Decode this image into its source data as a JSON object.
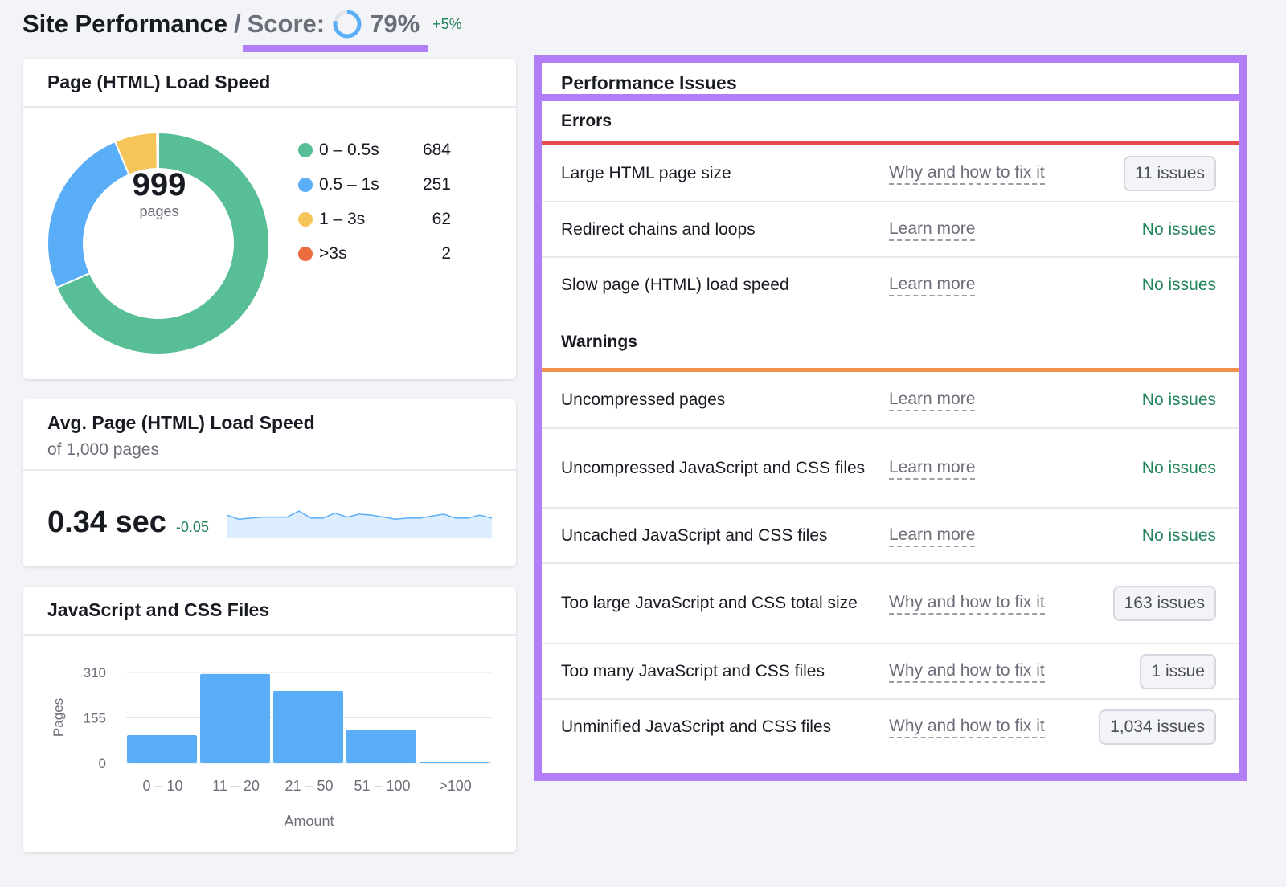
{
  "header": {
    "title": "Site Performance",
    "separator": "/",
    "score_label": "Score:",
    "score_value": "79%",
    "score_fraction": 0.79,
    "score_delta": "+5%"
  },
  "colors": {
    "accent": "#b17ef7",
    "green": "#57be95",
    "blue": "#5aaef7",
    "yellow": "#f5c55a",
    "red": "#ec6b3f",
    "error_line": "#e64c4c",
    "warning_line": "#f0904b",
    "positive": "#22845a"
  },
  "load_speed": {
    "title": "Page (HTML) Load Speed",
    "total": "999",
    "total_label": "pages",
    "chart_data": {
      "type": "pie",
      "donut": true,
      "categories": [
        "0 – 0.5s",
        "0.5 – 1s",
        "1 – 3s",
        ">3s"
      ],
      "values": [
        684,
        251,
        62,
        2
      ],
      "colors": [
        "#57be95",
        "#5aaef7",
        "#f5c55a",
        "#ec6b3f"
      ]
    }
  },
  "avg_speed": {
    "title": "Avg. Page (HTML) Load Speed",
    "subtitle": "of 1,000 pages",
    "value": "0.34 sec",
    "delta": "-0.05",
    "chart_data": {
      "type": "area",
      "values": [
        0.36,
        0.34,
        0.345,
        0.35,
        0.35,
        0.35,
        0.38,
        0.345,
        0.345,
        0.37,
        0.35,
        0.365,
        0.36,
        0.35,
        0.34,
        0.345,
        0.345,
        0.355,
        0.365,
        0.345,
        0.345,
        0.36,
        0.345
      ]
    }
  },
  "js_css": {
    "title": "JavaScript and CSS Files",
    "chart_data": {
      "type": "bar",
      "categories": [
        "0 – 10",
        "11 – 20",
        "21 – 50",
        "51 – 100",
        ">100"
      ],
      "values": [
        96,
        305,
        247,
        115,
        5
      ],
      "xlabel": "Amount",
      "ylabel": "Pages",
      "yticks": [
        "0",
        "155",
        "310"
      ],
      "ylim": [
        0,
        310
      ],
      "grid": true
    }
  },
  "issues": {
    "title": "Performance Issues",
    "errors_label": "Errors",
    "warnings_label": "Warnings",
    "errors": [
      {
        "name": "Large HTML page size",
        "link": "Why and how to fix it",
        "status": "11 issues",
        "badge": true
      },
      {
        "name": "Redirect chains and loops",
        "link": "Learn more",
        "status": "No issues",
        "badge": false
      },
      {
        "name": "Slow page (HTML) load speed",
        "link": "Learn more",
        "status": "No issues",
        "badge": false
      }
    ],
    "warnings": [
      {
        "name": "Uncompressed pages",
        "link": "Learn more",
        "status": "No issues",
        "badge": false
      },
      {
        "name": "Uncompressed JavaScript and CSS files",
        "link": "Learn more",
        "status": "No issues",
        "badge": false
      },
      {
        "name": "Uncached JavaScript and CSS files",
        "link": "Learn more",
        "status": "No issues",
        "badge": false
      },
      {
        "name": "Too large JavaScript and CSS total size",
        "link": "Why and how to fix it",
        "status": "163 issues",
        "badge": true
      },
      {
        "name": "Too many JavaScript and CSS files",
        "link": "Why and how to fix it",
        "status": "1 issue",
        "badge": true
      },
      {
        "name": "Unminified JavaScript and CSS files",
        "link": "Why and how to fix it",
        "status": "1,034 issues",
        "badge": true
      }
    ]
  }
}
